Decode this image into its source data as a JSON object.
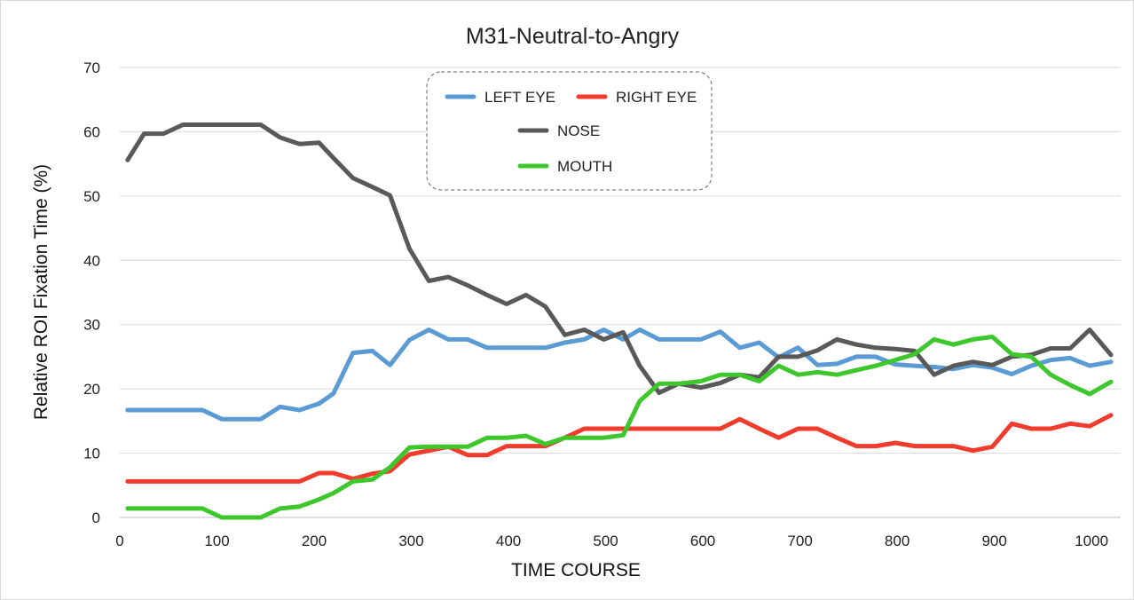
{
  "chart_data": {
    "type": "line",
    "title": "M31-Neutral-to-Angry",
    "xlabel": "TIME  COURSE",
    "ylabel": "Relative  ROI  Fixation  Time  (%)",
    "xlim": [
      0,
      1030
    ],
    "ylim": [
      0,
      70
    ],
    "xticks": [
      0,
      100,
      200,
      300,
      400,
      500,
      600,
      700,
      800,
      900,
      1000
    ],
    "yticks": [
      0,
      10,
      20,
      30,
      40,
      50,
      60,
      70
    ],
    "grid": "horizontal",
    "legend_position": "top-center",
    "x": [
      8,
      25,
      45,
      65,
      85,
      105,
      125,
      145,
      165,
      185,
      205,
      220,
      240,
      260,
      278,
      298,
      318,
      338,
      358,
      378,
      398,
      418,
      438,
      458,
      478,
      498,
      518,
      535,
      555,
      575,
      598,
      618,
      638,
      658,
      678,
      698,
      718,
      738,
      758,
      778,
      798,
      818,
      838,
      858,
      878,
      898,
      918,
      938,
      958,
      978,
      998,
      1020
    ],
    "series": [
      {
        "name": "LEFT EYE",
        "color": "#5b9bd5",
        "values": [
          16.7,
          16.7,
          16.7,
          16.7,
          16.7,
          15.3,
          15.3,
          15.3,
          17.2,
          16.7,
          17.7,
          19.3,
          25.6,
          25.9,
          23.7,
          27.6,
          29.2,
          27.7,
          27.7,
          26.4,
          26.4,
          26.4,
          26.4,
          27.2,
          27.7,
          29.2,
          27.7,
          29.2,
          27.7,
          27.7,
          27.7,
          28.9,
          26.4,
          27.2,
          24.9,
          26.4,
          23.7,
          23.9,
          25.0,
          25.0,
          23.8,
          23.6,
          23.4,
          23.1,
          23.7,
          23.3,
          22.3,
          23.6,
          24.5,
          24.8,
          23.6,
          24.2
        ]
      },
      {
        "name": "RIGHT EYE",
        "color": "#f03c2d",
        "values": [
          5.6,
          5.6,
          5.6,
          5.6,
          5.6,
          5.6,
          5.6,
          5.6,
          5.6,
          5.6,
          6.9,
          6.9,
          6.0,
          6.8,
          7.2,
          9.8,
          10.4,
          11.0,
          9.7,
          9.7,
          11.1,
          11.1,
          11.1,
          12.4,
          13.8,
          13.8,
          13.8,
          13.8,
          13.8,
          13.8,
          13.8,
          13.8,
          15.3,
          13.8,
          12.4,
          13.8,
          13.8,
          12.4,
          11.1,
          11.1,
          11.6,
          11.1,
          11.1,
          11.1,
          10.4,
          11.0,
          14.6,
          13.8,
          13.8,
          14.6,
          14.2,
          15.9
        ]
      },
      {
        "name": "NOSE",
        "color": "#595959",
        "values": [
          55.6,
          59.7,
          59.7,
          61.1,
          61.1,
          61.1,
          61.1,
          61.1,
          59.1,
          58.1,
          58.3,
          55.9,
          52.8,
          51.4,
          50.1,
          41.8,
          36.8,
          37.4,
          36.1,
          34.6,
          33.2,
          34.6,
          32.8,
          28.4,
          29.2,
          27.7,
          28.8,
          23.6,
          19.4,
          20.8,
          20.2,
          20.9,
          22.2,
          21.8,
          25.0,
          25.0,
          26.0,
          27.7,
          26.9,
          26.4,
          26.2,
          25.9,
          22.2,
          23.6,
          24.2,
          23.7,
          25.0,
          25.3,
          26.3,
          26.3,
          29.2,
          25.3
        ]
      },
      {
        "name": "MOUTH",
        "color": "#3ec72c",
        "values": [
          1.4,
          1.4,
          1.4,
          1.4,
          1.4,
          0.0,
          0.0,
          0.0,
          1.4,
          1.7,
          2.8,
          3.8,
          5.6,
          5.9,
          7.8,
          10.9,
          11.0,
          11.0,
          11.0,
          12.4,
          12.4,
          12.7,
          11.4,
          12.4,
          12.4,
          12.4,
          12.8,
          18.1,
          20.8,
          20.8,
          21.2,
          22.2,
          22.2,
          21.2,
          23.6,
          22.2,
          22.6,
          22.2,
          22.9,
          23.6,
          24.5,
          25.4,
          27.7,
          26.9,
          27.7,
          28.1,
          25.4,
          25.0,
          22.2,
          20.6,
          19.2,
          21.1
        ]
      }
    ]
  }
}
